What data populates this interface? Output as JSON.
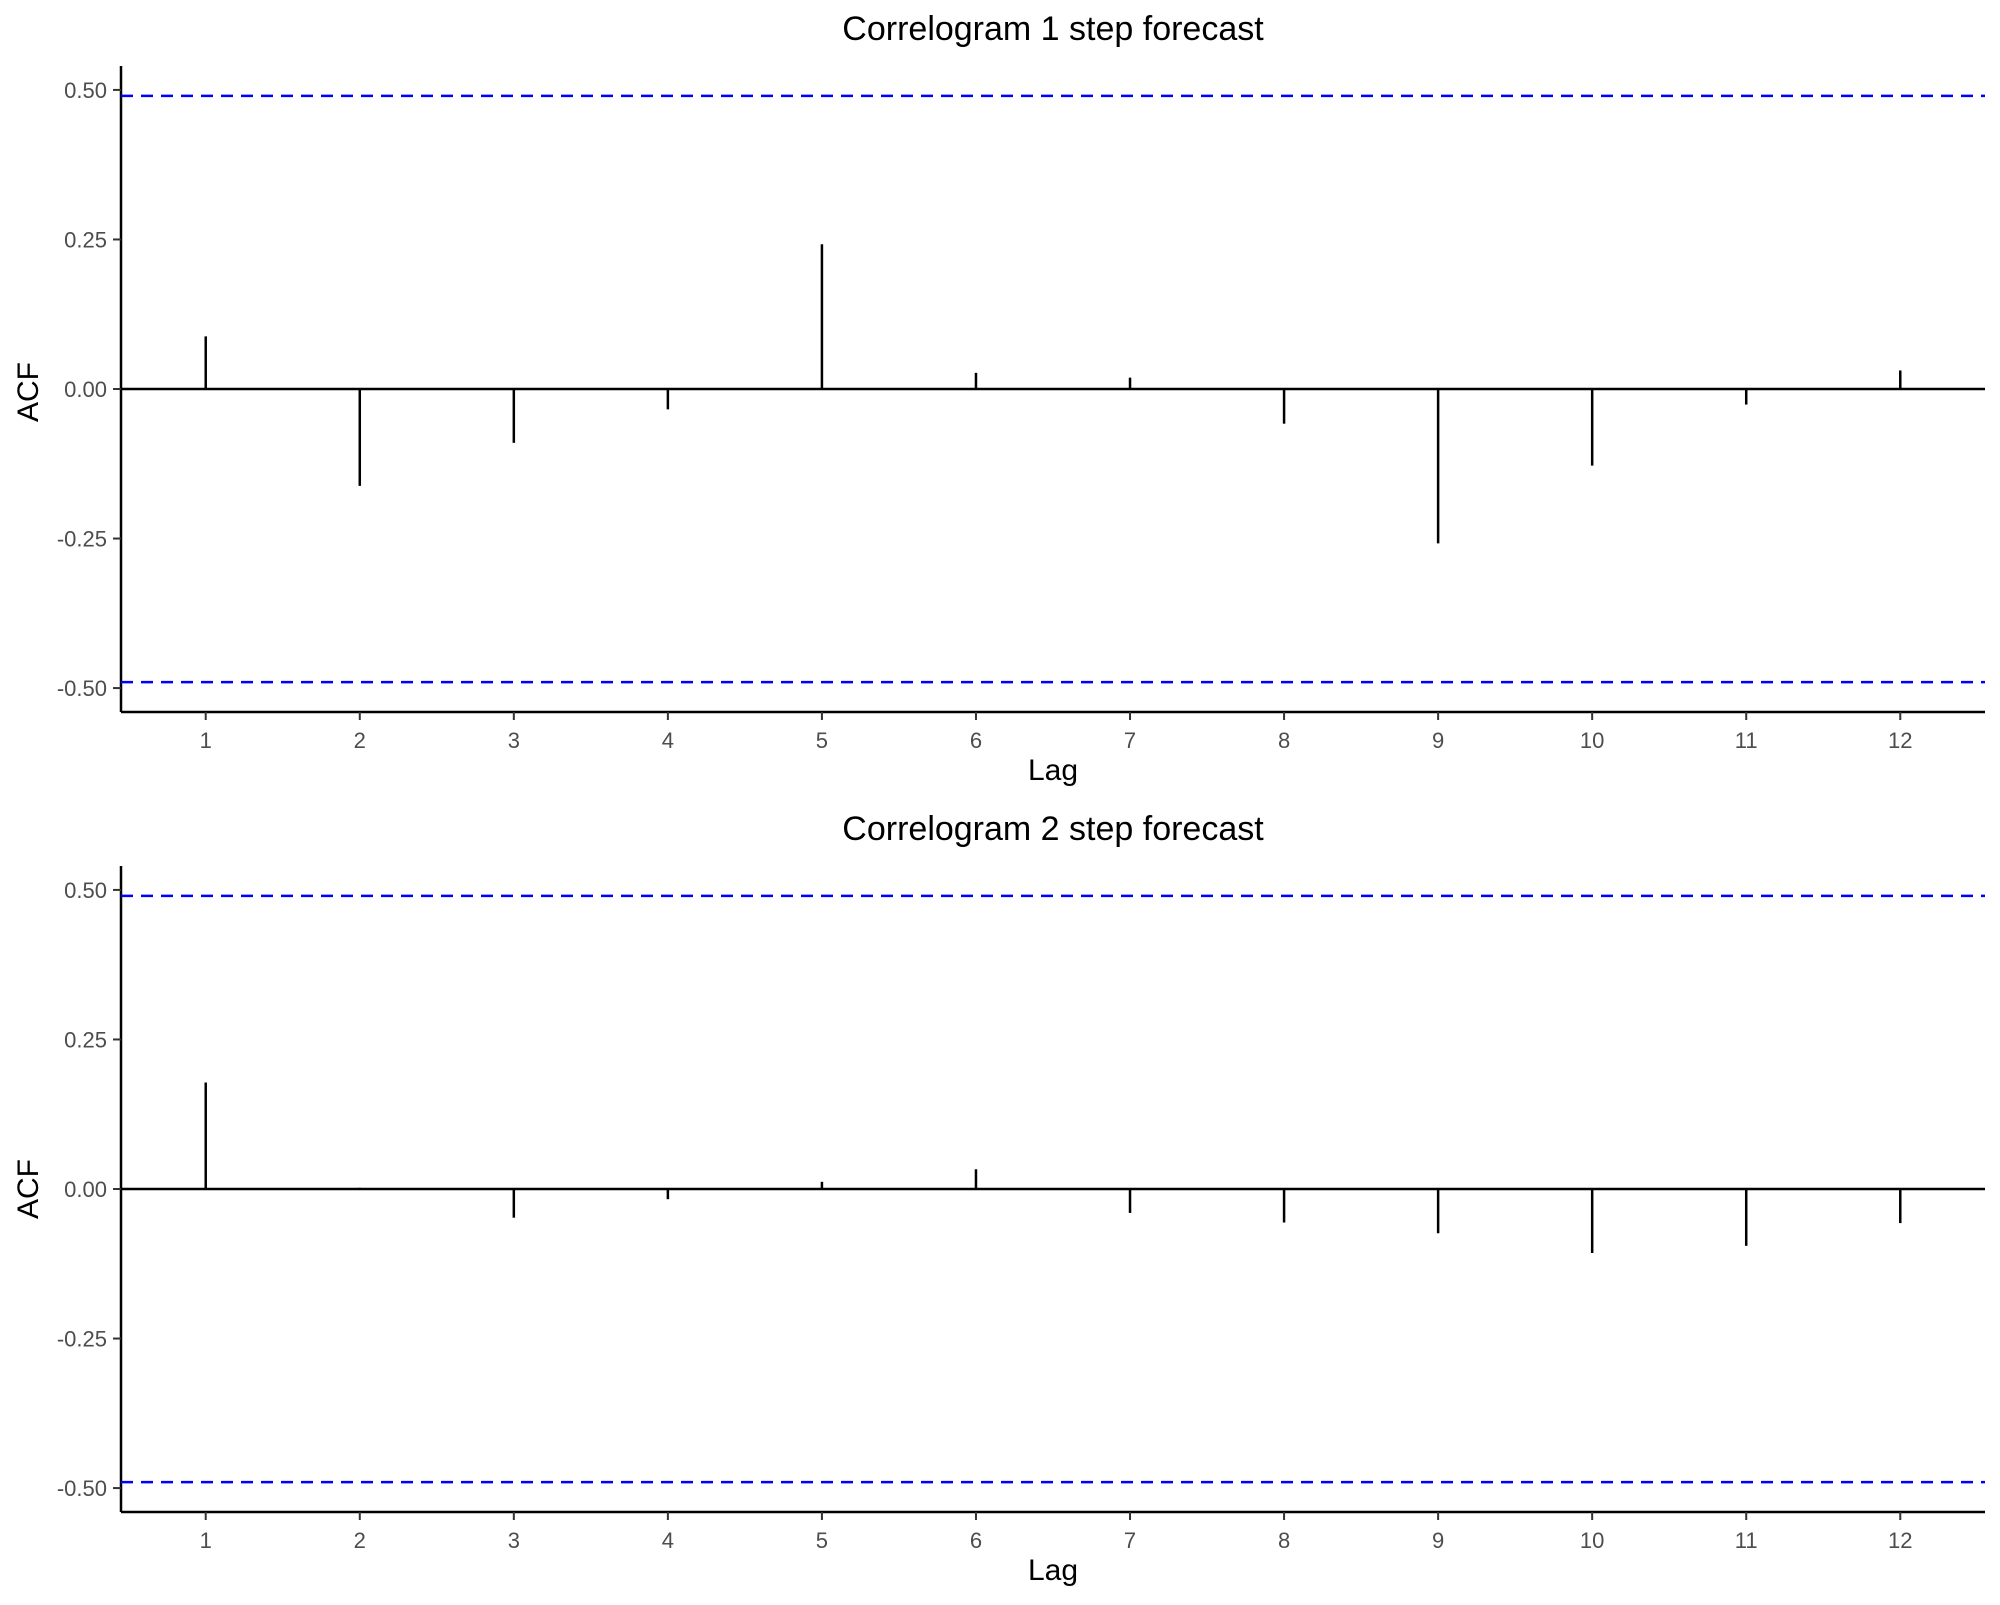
{
  "chart_data": [
    {
      "type": "bar",
      "title": "Correlogram 1 step forecast",
      "xlabel": "Lag",
      "ylabel": "ACF",
      "x": [
        1,
        2,
        3,
        4,
        5,
        6,
        7,
        8,
        9,
        10,
        11,
        12
      ],
      "x_ticks": [
        "1",
        "2",
        "3",
        "4",
        "5",
        "6",
        "7",
        "8",
        "9",
        "10",
        "11",
        "12"
      ],
      "xlim": [
        0.45,
        12.55
      ],
      "y_ticks": [
        "0.50",
        "0.25",
        "0.00",
        "-0.25",
        "-0.50"
      ],
      "y_tick_values": [
        0.5,
        0.25,
        0,
        -0.25,
        -0.5
      ],
      "ylim": [
        -0.54,
        0.54
      ],
      "values": [
        0.088,
        -0.162,
        -0.09,
        -0.034,
        0.242,
        0.027,
        0.019,
        -0.058,
        -0.258,
        -0.128,
        -0.026,
        0.031
      ],
      "confidence_bound": 0.49,
      "confidence_color": "#0000ff",
      "bar_color": "#000000",
      "grid": false
    },
    {
      "type": "bar",
      "title": "Correlogram 2 step forecast",
      "xlabel": "Lag",
      "ylabel": "ACF",
      "x": [
        1,
        2,
        3,
        4,
        5,
        6,
        7,
        8,
        9,
        10,
        11,
        12
      ],
      "x_ticks": [
        "1",
        "2",
        "3",
        "4",
        "5",
        "6",
        "7",
        "8",
        "9",
        "10",
        "11",
        "12"
      ],
      "xlim": [
        0.45,
        12.55
      ],
      "y_ticks": [
        "0.50",
        "0.25",
        "0.00",
        "-0.25",
        "-0.50"
      ],
      "y_tick_values": [
        0.5,
        0.25,
        0,
        -0.25,
        -0.5
      ],
      "ylim": [
        -0.54,
        0.54
      ],
      "values": [
        0.178,
        0.002,
        -0.048,
        -0.017,
        0.012,
        0.033,
        -0.04,
        -0.056,
        -0.074,
        -0.107,
        -0.095,
        -0.057
      ],
      "confidence_bound": 0.49,
      "confidence_color": "#0000ff",
      "bar_color": "#000000",
      "grid": false
    }
  ]
}
